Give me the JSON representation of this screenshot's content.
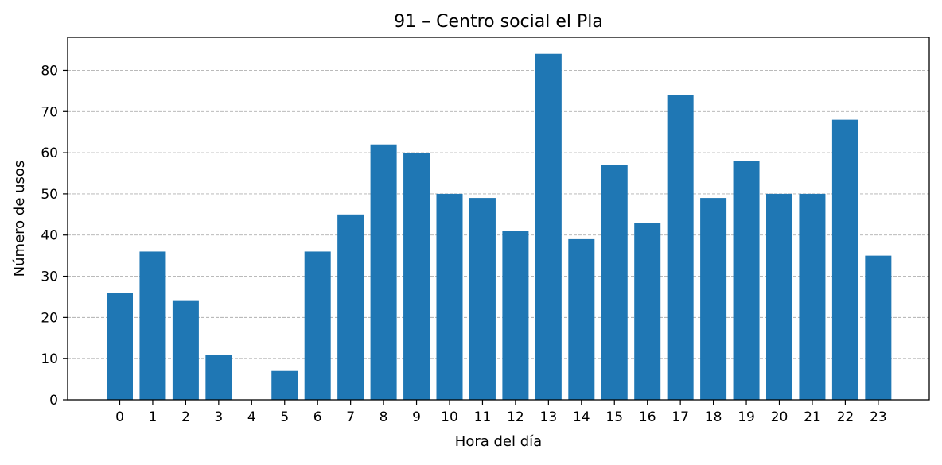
{
  "chart_data": {
    "type": "bar",
    "title": "91 – Centro social el Pla",
    "xlabel": "Hora del día",
    "ylabel": "Número de usos",
    "categories": [
      "0",
      "1",
      "2",
      "3",
      "4",
      "5",
      "6",
      "7",
      "8",
      "9",
      "10",
      "11",
      "12",
      "13",
      "14",
      "15",
      "16",
      "17",
      "18",
      "19",
      "20",
      "21",
      "22",
      "23"
    ],
    "values": [
      26,
      36,
      24,
      11,
      0,
      7,
      36,
      45,
      62,
      60,
      50,
      49,
      41,
      84,
      39,
      57,
      43,
      74,
      49,
      58,
      50,
      50,
      68,
      35
    ],
    "ylim": [
      0,
      88
    ],
    "yticks": [
      0,
      10,
      20,
      30,
      40,
      50,
      60,
      70,
      80
    ],
    "grid": "horizontal dashed",
    "legend": "none",
    "colors": {
      "bar": "#1f77b4",
      "grid": "#b0b0b0",
      "axis": "#000000"
    }
  }
}
